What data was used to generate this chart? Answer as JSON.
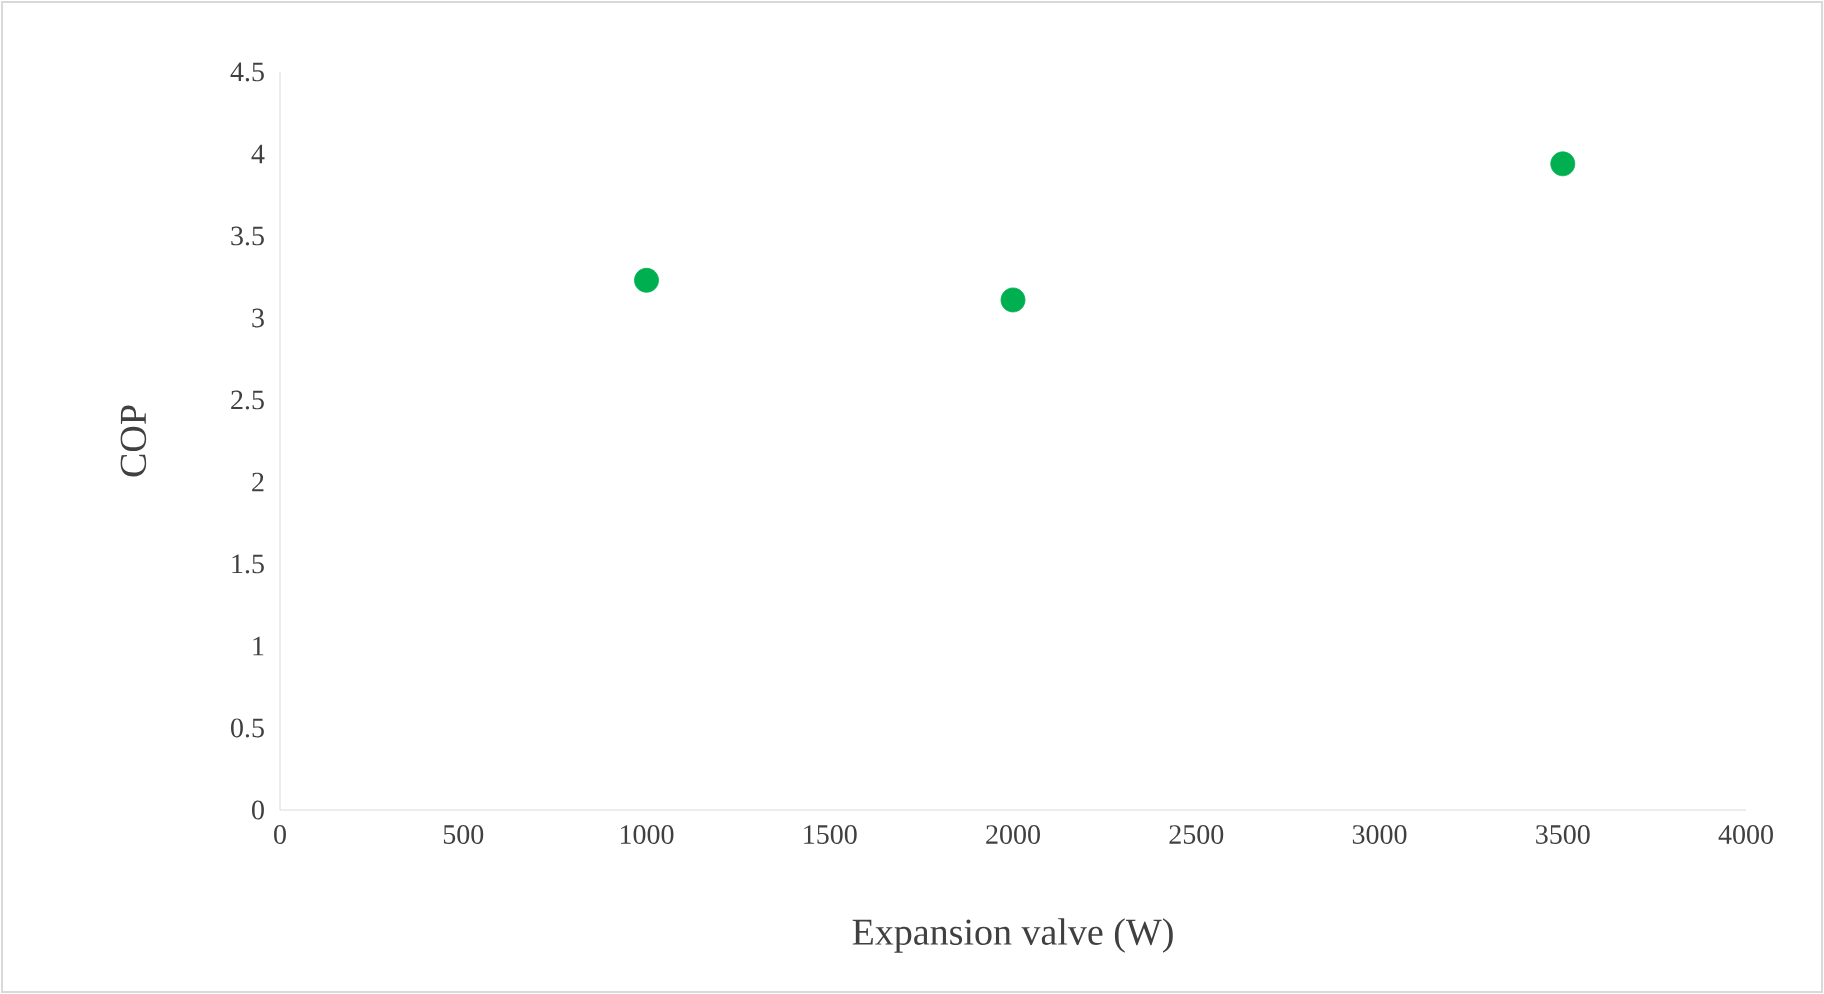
{
  "chart_data": {
    "type": "scatter",
    "xlabel": "Expansion valve (W)",
    "ylabel": "COP",
    "x": [
      1000,
      2000,
      3500
    ],
    "series": [
      {
        "color": "#00b050",
        "values": [
          3.23,
          3.11,
          3.94
        ]
      }
    ],
    "xlim": [
      0,
      4000
    ],
    "ylim": [
      0,
      4.5
    ],
    "xticks": [
      0,
      500,
      1000,
      1500,
      2000,
      2500,
      3000,
      3500,
      4000
    ],
    "yticks": [
      0,
      0.5,
      1,
      1.5,
      2,
      2.5,
      3,
      3.5,
      4,
      4.5
    ],
    "grid": false,
    "marker": "circle"
  }
}
